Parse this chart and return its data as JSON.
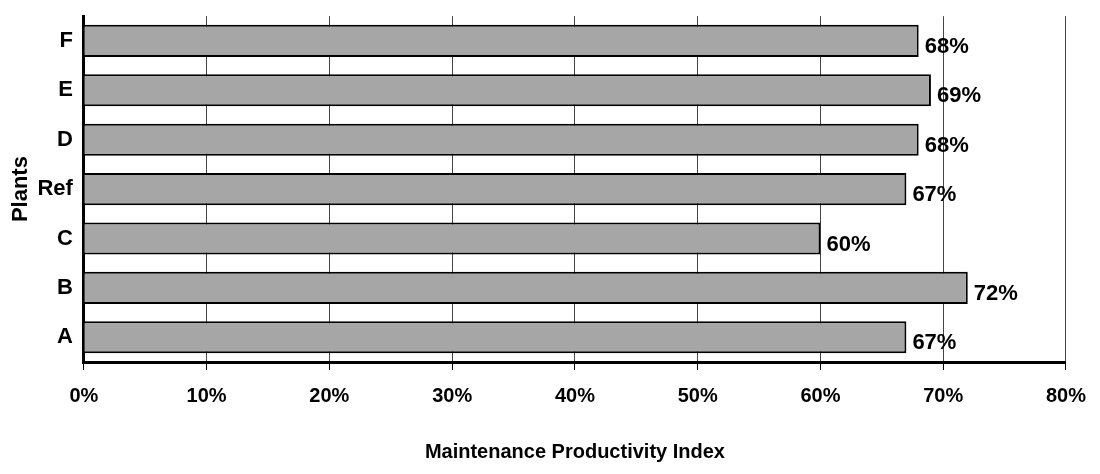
{
  "chart_data": {
    "type": "bar",
    "orientation": "horizontal",
    "xlabel": "Maintenance Productivity Index",
    "ylabel": "Plants",
    "categories": [
      "F",
      "E",
      "D",
      "Ref",
      "C",
      "B",
      "A"
    ],
    "values": [
      68,
      69,
      68,
      67,
      60,
      72,
      67
    ],
    "value_labels": [
      "68%",
      "69%",
      "68%",
      "67%",
      "60%",
      "72%",
      "67%"
    ],
    "color": "#a6a6a6",
    "xlim": [
      0,
      80
    ],
    "xticks": [
      {
        "value": 0,
        "label": "0%"
      },
      {
        "value": 10,
        "label": "10%"
      },
      {
        "value": 20,
        "label": "20%"
      },
      {
        "value": 30,
        "label": "30%"
      },
      {
        "value": 40,
        "label": "40%"
      },
      {
        "value": 50,
        "label": "50%"
      },
      {
        "value": 60,
        "label": "60%"
      },
      {
        "value": 70,
        "label": "70%"
      },
      {
        "value": 80,
        "label": "80%"
      }
    ],
    "grid": "x",
    "legend": false
  }
}
